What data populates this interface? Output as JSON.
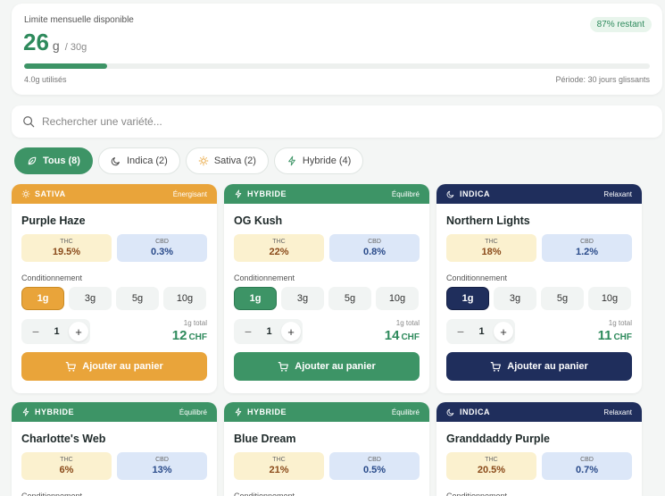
{
  "limit": {
    "title": "Limite mensuelle disponible",
    "value": "26",
    "unit": "g",
    "max": "/ 30g",
    "badge": "87% restant",
    "progress_fraction": 0.1333,
    "used": "4.0g utilisés",
    "period": "Période: 30 jours glissants"
  },
  "search": {
    "placeholder": "Rechercher une variété..."
  },
  "filters": [
    {
      "label": "Tous (8)",
      "icon": "leaf-icon",
      "active": true
    },
    {
      "label": "Indica (2)",
      "icon": "moon-icon",
      "active": false
    },
    {
      "label": "Sativa (2)",
      "icon": "sun-icon",
      "active": false
    },
    {
      "label": "Hybride (4)",
      "icon": "lightning-icon",
      "active": false
    }
  ],
  "common": {
    "thc_label": "THC",
    "cbd_label": "CBD",
    "cond_label": "Conditionnement",
    "sizes": [
      "1g",
      "3g",
      "5g",
      "10g"
    ],
    "add_label": "Ajouter au panier",
    "currency": "CHF"
  },
  "products": [
    {
      "type": "SATIVA",
      "effect": "Énergisant",
      "name": "Purple Haze",
      "thc": "19.5%",
      "cbd": "0.3%",
      "qty": "1",
      "price_note": "1g total",
      "price": "12"
    },
    {
      "type": "HYBRIDE",
      "effect": "Équilibré",
      "name": "OG Kush",
      "thc": "22%",
      "cbd": "0.8%",
      "qty": "1",
      "price_note": "1g total",
      "price": "14"
    },
    {
      "type": "INDICA",
      "effect": "Relaxant",
      "name": "Northern Lights",
      "thc": "18%",
      "cbd": "1.2%",
      "qty": "1",
      "price_note": "1g total",
      "price": "11"
    },
    {
      "type": "HYBRIDE",
      "effect": "Équilibré",
      "name": "Charlotte's Web",
      "thc": "6%",
      "cbd": "13%"
    },
    {
      "type": "HYBRIDE",
      "effect": "Équilibré",
      "name": "Blue Dream",
      "thc": "21%",
      "cbd": "0.5%"
    },
    {
      "type": "INDICA",
      "effect": "Relaxant",
      "name": "Granddaddy Purple",
      "thc": "20.5%",
      "cbd": "0.7%"
    }
  ],
  "colors": {
    "sativa": "#e9a43a",
    "hybride": "#3d9466",
    "indica": "#1f2e5c",
    "accent": "#2e8a5c"
  }
}
